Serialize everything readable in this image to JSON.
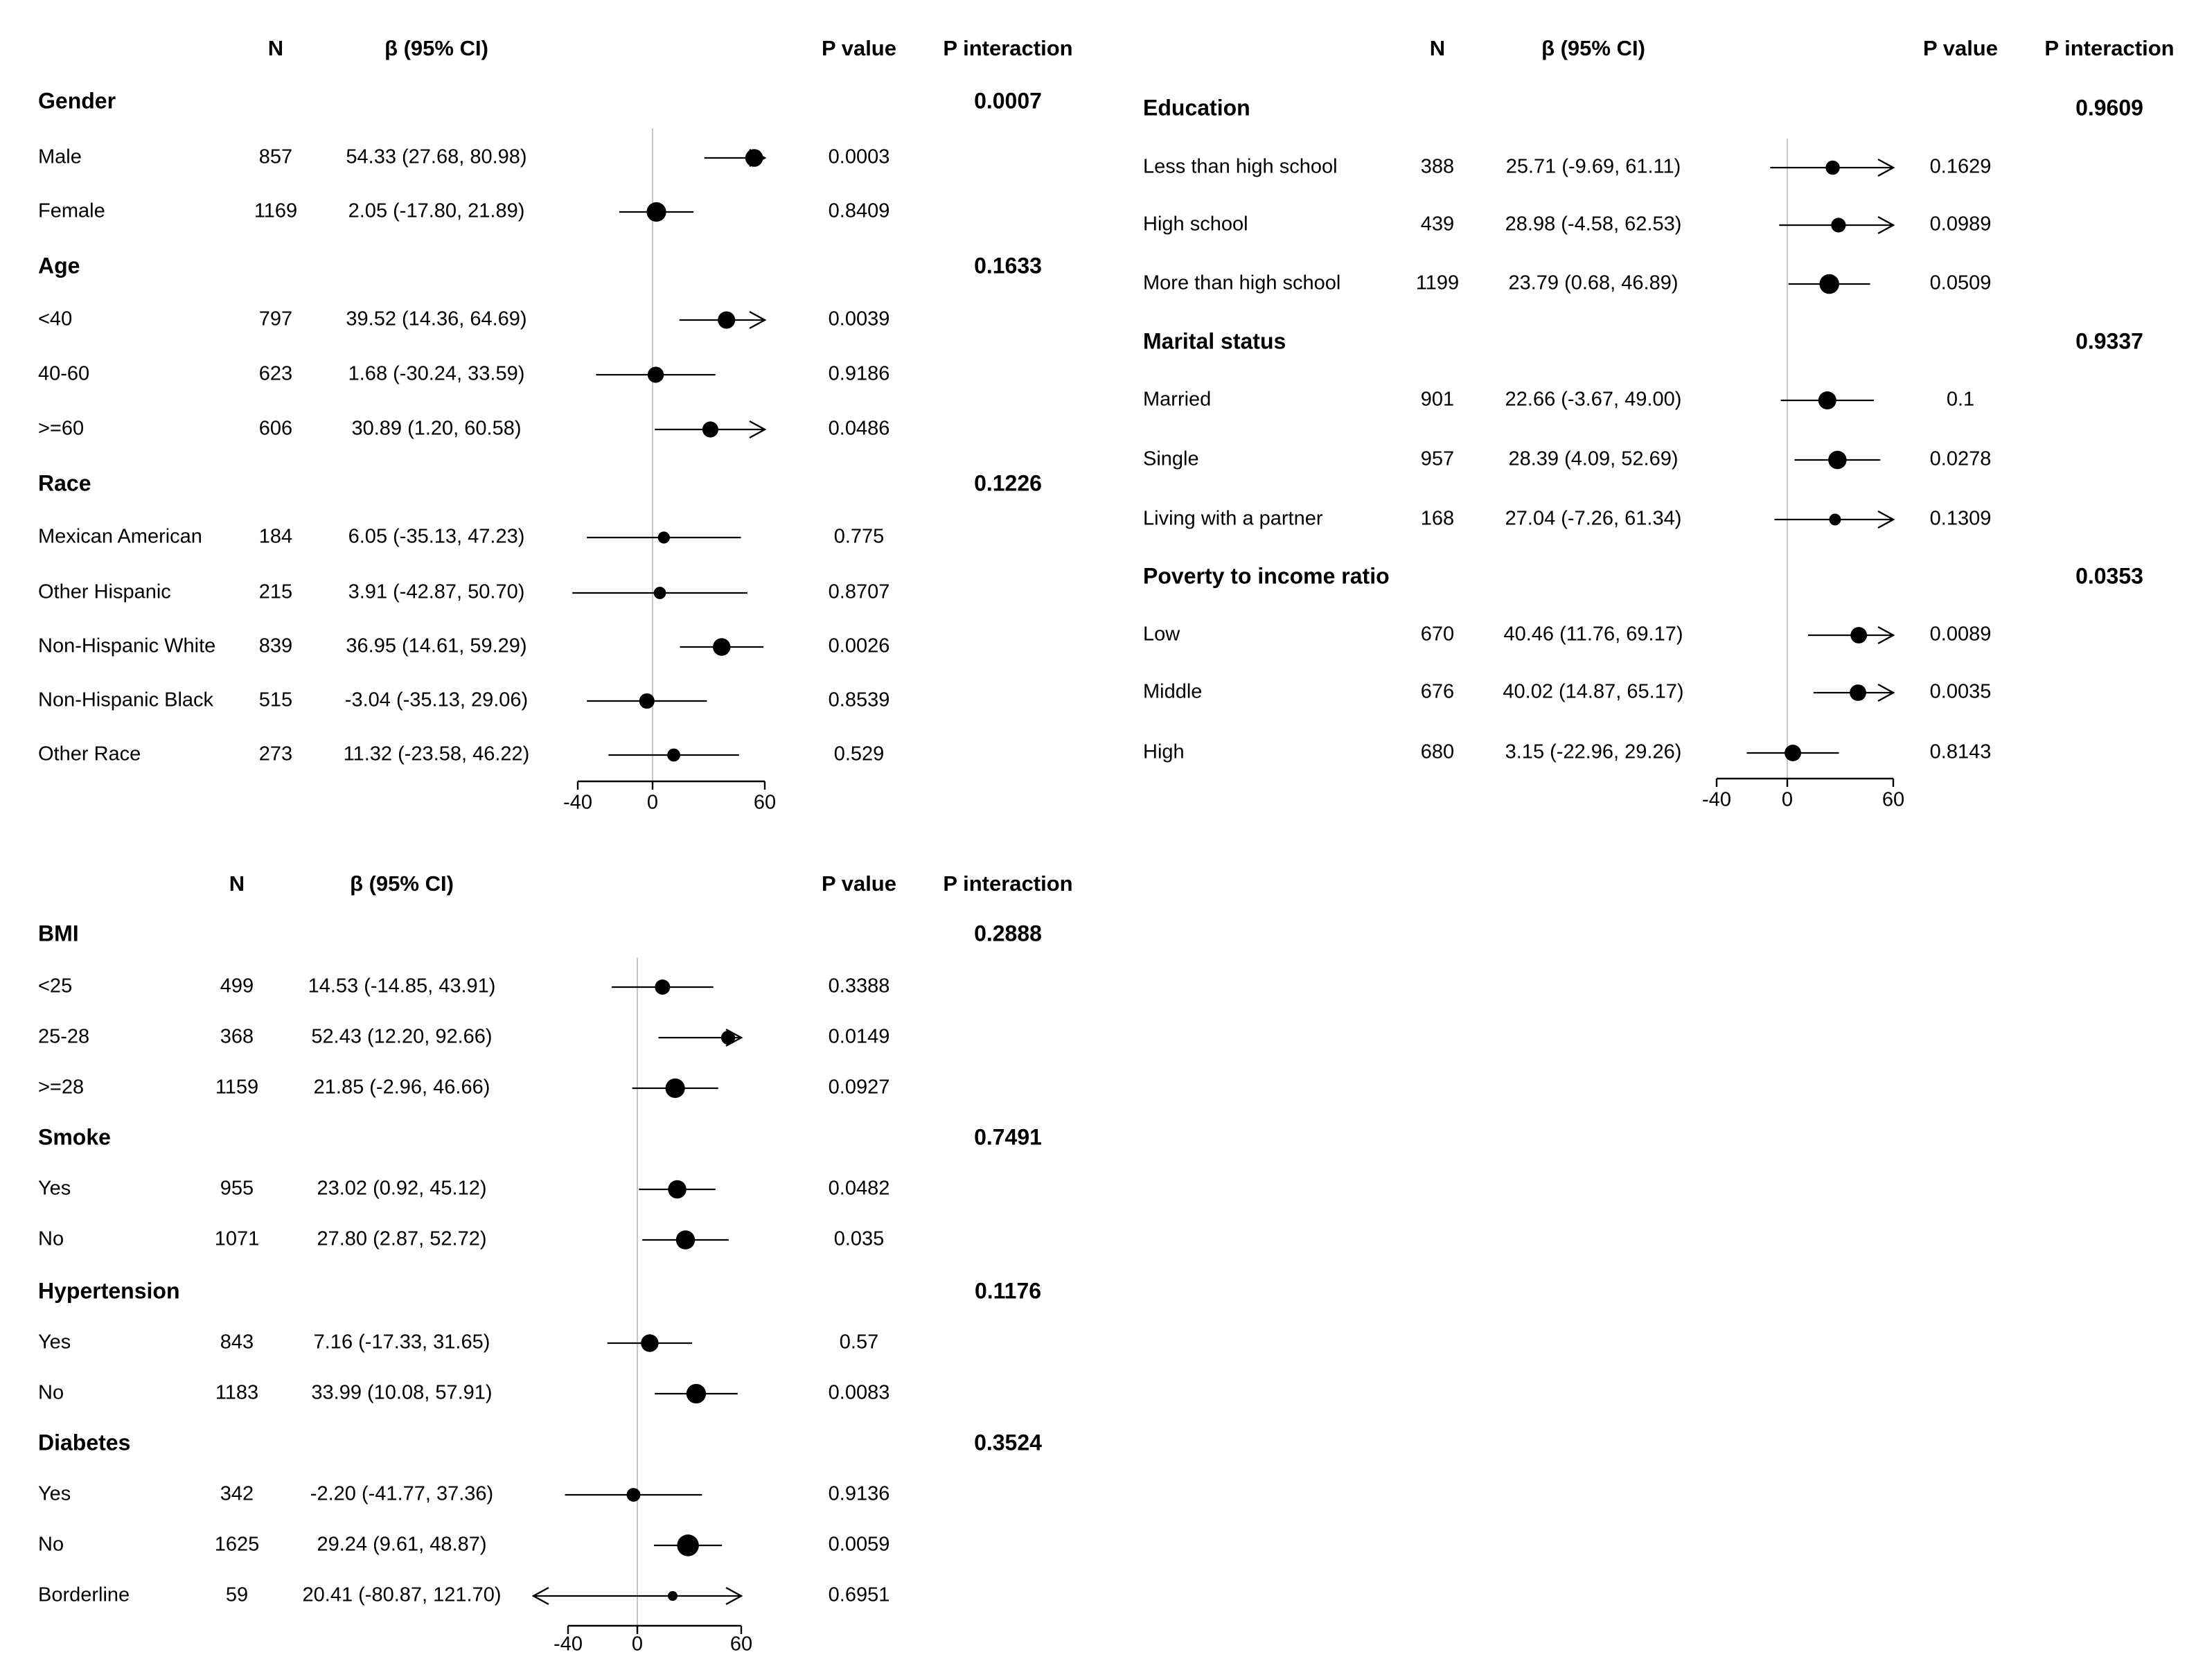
{
  "chart_data": [
    {
      "type": "forest",
      "headers": {
        "n": "N",
        "beta": "β (95% CI)",
        "p": "P value",
        "pint": "P interaction"
      },
      "axis": {
        "ticks": [
          -40,
          0,
          60
        ],
        "xlim": [
          -40,
          60
        ],
        "reference": 0
      },
      "groups": [
        {
          "name": "Gender",
          "p_interaction": "0.0007",
          "rows": [
            {
              "label": "Male",
              "n": "857",
              "ci": "54.33 (27.68, 80.98)",
              "p": "0.0003",
              "est": 54.33,
              "lo": 27.68,
              "hi": 80.98
            },
            {
              "label": "Female",
              "n": "1169",
              "ci": "2.05 (-17.80, 21.89)",
              "p": "0.8409",
              "est": 2.05,
              "lo": -17.8,
              "hi": 21.89
            }
          ]
        },
        {
          "name": "Age",
          "p_interaction": "0.1633",
          "rows": [
            {
              "label": "<40",
              "n": "797",
              "ci": "39.52 (14.36, 64.69)",
              "p": "0.0039",
              "est": 39.52,
              "lo": 14.36,
              "hi": 64.69
            },
            {
              "label": "40-60",
              "n": "623",
              "ci": "1.68 (-30.24, 33.59)",
              "p": "0.9186",
              "est": 1.68,
              "lo": -30.24,
              "hi": 33.59
            },
            {
              "label": ">=60",
              "n": "606",
              "ci": "30.89 (1.20, 60.58)",
              "p": "0.0486",
              "est": 30.89,
              "lo": 1.2,
              "hi": 60.58
            }
          ]
        },
        {
          "name": "Race",
          "p_interaction": "0.1226",
          "rows": [
            {
              "label": "Mexican American",
              "n": "184",
              "ci": "6.05 (-35.13, 47.23)",
              "p": "0.775",
              "est": 6.05,
              "lo": -35.13,
              "hi": 47.23
            },
            {
              "label": "Other Hispanic",
              "n": "215",
              "ci": "3.91 (-42.87, 50.70)",
              "p": "0.8707",
              "est": 3.91,
              "lo": -42.87,
              "hi": 50.7
            },
            {
              "label": "Non-Hispanic White",
              "n": "839",
              "ci": "36.95 (14.61, 59.29)",
              "p": "0.0026",
              "est": 36.95,
              "lo": 14.61,
              "hi": 59.29
            },
            {
              "label": "Non-Hispanic Black",
              "n": "515",
              "ci": "-3.04 (-35.13, 29.06)",
              "p": "0.8539",
              "est": -3.04,
              "lo": -35.13,
              "hi": 29.06
            },
            {
              "label": "Other Race",
              "n": "273",
              "ci": "11.32 (-23.58, 46.22)",
              "p": "0.529",
              "est": 11.32,
              "lo": -23.58,
              "hi": 46.22
            }
          ]
        }
      ]
    },
    {
      "type": "forest",
      "headers": {
        "n": "N",
        "beta": "β (95% CI)",
        "p": "P value",
        "pint": "P interaction"
      },
      "axis": {
        "ticks": [
          -40,
          0,
          60
        ],
        "xlim": [
          -40,
          60
        ],
        "reference": 0
      },
      "groups": [
        {
          "name": "Education",
          "p_interaction": "0.9609",
          "rows": [
            {
              "label": "Less than high school",
              "n": "388",
              "ci": "25.71 (-9.69, 61.11)",
              "p": "0.1629",
              "est": 25.71,
              "lo": -9.69,
              "hi": 61.11
            },
            {
              "label": "High school",
              "n": "439",
              "ci": "28.98 (-4.58, 62.53)",
              "p": "0.0989",
              "est": 28.98,
              "lo": -4.58,
              "hi": 62.53
            },
            {
              "label": "More than high school",
              "n": "1199",
              "ci": "23.79 (0.68, 46.89)",
              "p": "0.0509",
              "est": 23.79,
              "lo": 0.68,
              "hi": 46.89
            }
          ]
        },
        {
          "name": "Marital status",
          "p_interaction": "0.9337",
          "rows": [
            {
              "label": "Married",
              "n": "901",
              "ci": "22.66 (-3.67, 49.00)",
              "p": "0.1",
              "est": 22.66,
              "lo": -3.67,
              "hi": 49.0
            },
            {
              "label": "Single",
              "n": "957",
              "ci": "28.39 (4.09, 52.69)",
              "p": "0.0278",
              "est": 28.39,
              "lo": 4.09,
              "hi": 52.69
            },
            {
              "label": "Living with a partner",
              "n": "168",
              "ci": "27.04 (-7.26, 61.34)",
              "p": "0.1309",
              "est": 27.04,
              "lo": -7.26,
              "hi": 61.34
            }
          ]
        },
        {
          "name": "Poverty to income ratio",
          "p_interaction": "0.0353",
          "rows": [
            {
              "label": "Low",
              "n": "670",
              "ci": "40.46 (11.76, 69.17)",
              "p": "0.0089",
              "est": 40.46,
              "lo": 11.76,
              "hi": 69.17
            },
            {
              "label": "Middle",
              "n": "676",
              "ci": "40.02 (14.87, 65.17)",
              "p": "0.0035",
              "est": 40.02,
              "lo": 14.87,
              "hi": 65.17
            },
            {
              "label": "High",
              "n": "680",
              "ci": "3.15 (-22.96, 29.26)",
              "p": "0.8143",
              "est": 3.15,
              "lo": -22.96,
              "hi": 29.26
            }
          ]
        }
      ]
    },
    {
      "type": "forest",
      "headers": {
        "n": "N",
        "beta": "β (95% CI)",
        "p": "P value",
        "pint": "P interaction"
      },
      "axis": {
        "ticks": [
          -40,
          0,
          60
        ],
        "xlim": [
          -40,
          60
        ],
        "reference": 0
      },
      "groups": [
        {
          "name": "BMI",
          "p_interaction": "0.2888",
          "rows": [
            {
              "label": "<25",
              "n": "499",
              "ci": "14.53 (-14.85, 43.91)",
              "p": "0.3388",
              "est": 14.53,
              "lo": -14.85,
              "hi": 43.91
            },
            {
              "label": "25-28",
              "n": "368",
              "ci": "52.43 (12.20, 92.66)",
              "p": "0.0149",
              "est": 52.43,
              "lo": 12.2,
              "hi": 92.66
            },
            {
              "label": ">=28",
              "n": "1159",
              "ci": "21.85 (-2.96, 46.66)",
              "p": "0.0927",
              "est": 21.85,
              "lo": -2.96,
              "hi": 46.66
            }
          ]
        },
        {
          "name": "Smoke",
          "p_interaction": "0.7491",
          "rows": [
            {
              "label": "Yes",
              "n": "955",
              "ci": "23.02 (0.92, 45.12)",
              "p": "0.0482",
              "est": 23.02,
              "lo": 0.92,
              "hi": 45.12
            },
            {
              "label": "No",
              "n": "1071",
              "ci": "27.80 (2.87, 52.72)",
              "p": "0.035",
              "est": 27.8,
              "lo": 2.87,
              "hi": 52.72
            }
          ]
        },
        {
          "name": "Hypertension",
          "p_interaction": "0.1176",
          "rows": [
            {
              "label": "Yes",
              "n": "843",
              "ci": "7.16 (-17.33, 31.65)",
              "p": "0.57",
              "est": 7.16,
              "lo": -17.33,
              "hi": 31.65
            },
            {
              "label": "No",
              "n": "1183",
              "ci": "33.99 (10.08, 57.91)",
              "p": "0.0083",
              "est": 33.99,
              "lo": 10.08,
              "hi": 57.91
            }
          ]
        },
        {
          "name": "Diabetes",
          "p_interaction": "0.3524",
          "rows": [
            {
              "label": "Yes",
              "n": "342",
              "ci": "-2.20 (-41.77, 37.36)",
              "p": "0.9136",
              "est": -2.2,
              "lo": -41.77,
              "hi": 37.36
            },
            {
              "label": "No",
              "n": "1625",
              "ci": "29.24 (9.61, 48.87)",
              "p": "0.0059",
              "est": 29.24,
              "lo": 9.61,
              "hi": 48.87
            },
            {
              "label": "Borderline",
              "n": "59",
              "ci": "20.41 (-80.87, 121.70)",
              "p": "0.6951",
              "est": 20.41,
              "lo": -80.87,
              "hi": 121.7
            }
          ]
        }
      ]
    }
  ]
}
